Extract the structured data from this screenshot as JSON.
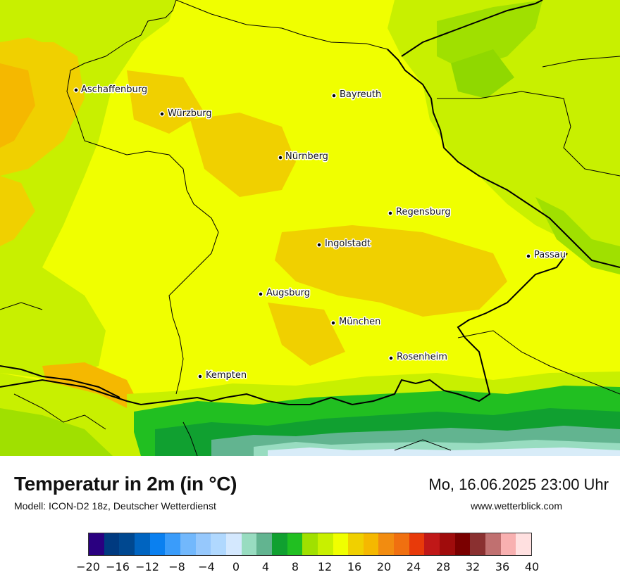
{
  "map": {
    "colors": {
      "land_warm": "#f0ff00",
      "land_yellow_orange": "#f0d000",
      "land_orange": "#f5b800",
      "land_lime": "#c8f000",
      "land_green_light": "#a0e000",
      "alps_green": "#21bf21",
      "alps_green_dark": "#10a030",
      "alps_teal": "#62b490",
      "alps_mint": "#98dcc0",
      "alps_snow": "#d8ecf8",
      "border": "#000000"
    },
    "cities": [
      {
        "name": "Aschaffenburg"
      },
      {
        "name": "Würzburg"
      },
      {
        "name": "Bayreuth"
      },
      {
        "name": "Nürnberg"
      },
      {
        "name": "Regensburg"
      },
      {
        "name": "Ingolstadt"
      },
      {
        "name": "Passau"
      },
      {
        "name": "Augsburg"
      },
      {
        "name": "München"
      },
      {
        "name": "Rosenheim"
      },
      {
        "name": "Kempten"
      }
    ]
  },
  "footer": {
    "title": "Temperatur in 2m (in °C)",
    "subtitle": "Modell: ICON-D2 18z, Deutscher Wetterdienst",
    "datetime": "Mo, 16.06.2025 23:00 Uhr",
    "website": "www.wetterblick.com"
  },
  "legend": {
    "colors": [
      "#2a0080",
      "#003a80",
      "#004890",
      "#0064c0",
      "#0a80f0",
      "#3a9cfa",
      "#72b8fc",
      "#96c8fc",
      "#b0d8fe",
      "#d4e8fe",
      "#98dcc0",
      "#62b490",
      "#10a030",
      "#21bf21",
      "#a0e000",
      "#c8f000",
      "#f0ff00",
      "#f0d000",
      "#f5b800",
      "#f28c10",
      "#f07010",
      "#e83a0a",
      "#c01818",
      "#a00c0c",
      "#7a0000",
      "#8a3030",
      "#c07070",
      "#f8b0b0",
      "#ffe0e0"
    ],
    "ticks": [
      "−20",
      "−16",
      "−12",
      "−8",
      "−4",
      "0",
      "4",
      "8",
      "12",
      "16",
      "20",
      "24",
      "28",
      "32",
      "36",
      "40"
    ]
  }
}
